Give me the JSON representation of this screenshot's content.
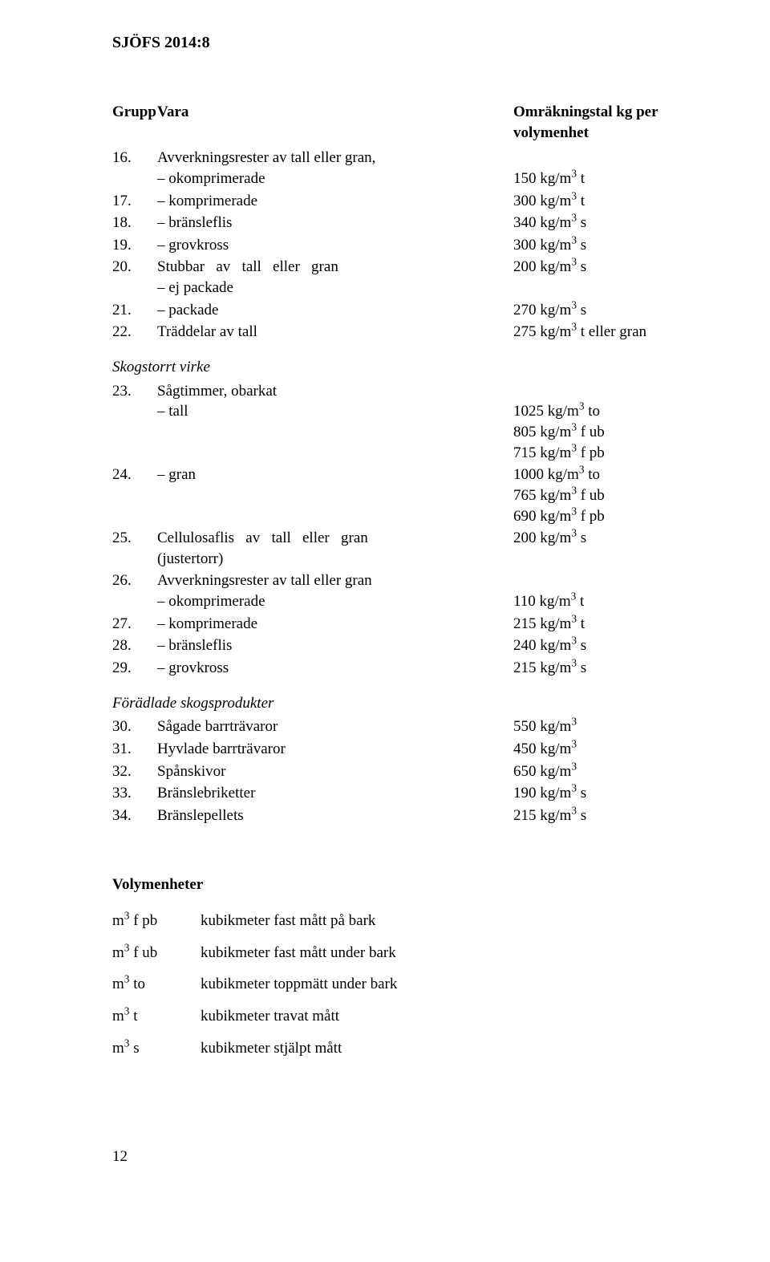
{
  "header": "SJÖFS 2014:8",
  "tableHeader": {
    "col1": "Grupp",
    "col2": "Vara",
    "col3": "Omräkningstal kg per volymenhet"
  },
  "rows": [
    {
      "num": "16.",
      "desc": "Avverkningsrester av tall eller gran, – okomprimerade",
      "val": "150 kg/m³ t",
      "descHtml": "Avverkningsrester av tall eller gran,<br>– okomprimerade",
      "valHtml": "<br>150 kg/m<sup>3</sup> t"
    },
    {
      "num": "17.",
      "desc": "– komprimerade",
      "val": "300 kg/m³ t",
      "valHtml": "300 kg/m<sup>3</sup> t"
    },
    {
      "num": "18.",
      "desc": "– bränsleflis",
      "val": "340 kg/m³ s",
      "valHtml": "340 kg/m<sup>3</sup> s"
    },
    {
      "num": "19.",
      "desc": "– grovkross",
      "val": "300 kg/m³ s",
      "valHtml": "300 kg/m<sup>3</sup> s"
    },
    {
      "num": "20.",
      "desc": "Stubbar av tall eller gran – ej packade",
      "val": "200 kg/m³ s",
      "descHtml": "Stubbar&nbsp;&nbsp;&nbsp;av&nbsp;&nbsp;&nbsp;tall&nbsp;&nbsp;&nbsp;eller&nbsp;&nbsp;&nbsp;gran<br>– ej packade",
      "valHtml": "200 kg/m<sup>3</sup> s"
    },
    {
      "num": "21.",
      "desc": "– packade",
      "val": "270 kg/m³ s",
      "valHtml": "270 kg/m<sup>3</sup> s"
    },
    {
      "num": "22.",
      "desc": "Träddelar av tall",
      "val": "275 kg/m³ t eller gran",
      "valHtml": "275 kg/m<sup>3</sup> t eller gran"
    }
  ],
  "section2": {
    "title": "Skogstorrt virke",
    "rows": [
      {
        "num": "23.",
        "desc": "Sågtimmer, obarkat<br>– tall",
        "val": "1025 kg/m³ to / 805 kg/m³ f ub / 715 kg/m³ f pb",
        "descHtml": "Sågtimmer, obarkat<br>– tall",
        "valHtml": "<br>1025 kg/m<sup>3</sup> to<br>805 kg/m<sup>3</sup> f ub<br>715 kg/m<sup>3</sup> f pb"
      },
      {
        "num": "24.",
        "desc": "– gran",
        "val": "1000 kg/m³ to / 765 kg/m³ f ub / 690 kg/m³ f pb",
        "valHtml": "1000 kg/m<sup>3</sup> to<br>765 kg/m<sup>3</sup> f ub<br>690 kg/m<sup>3</sup> f pb"
      },
      {
        "num": "25.",
        "desc": "Cellulosaflis av tall eller gran (justertorr)",
        "val": "200 kg/m³ s",
        "descHtml": "Cellulosaflis&nbsp;&nbsp;&nbsp;av&nbsp;&nbsp;&nbsp;tall&nbsp;&nbsp;&nbsp;eller&nbsp;&nbsp;&nbsp;gran<br>(justertorr)",
        "valHtml": "200 kg/m<sup>3</sup> s"
      },
      {
        "num": "26.",
        "desc": "Avverkningsrester av tall eller gran – okomprimerade",
        "val": "110 kg/m³ t",
        "descHtml": "Avverkningsrester av tall eller gran<br>– okomprimerade",
        "valHtml": "<br>110 kg/m<sup>3</sup> t"
      },
      {
        "num": "27.",
        "desc": "– komprimerade",
        "val": "215 kg/m³ t",
        "valHtml": "215 kg/m<sup>3</sup> t"
      },
      {
        "num": "28.",
        "desc": "– bränsleflis",
        "val": "240 kg/m³ s",
        "valHtml": "240 kg/m<sup>3</sup> s"
      },
      {
        "num": "29.",
        "desc": "– grovkross",
        "val": "215 kg/m³ s",
        "valHtml": "215 kg/m<sup>3</sup> s"
      }
    ]
  },
  "section3": {
    "title": "Förädlade skogsprodukter",
    "rows": [
      {
        "num": "30.",
        "desc": "Sågade barrträvaror",
        "val": "550 kg/m³",
        "valHtml": "550 kg/m<sup>3</sup>"
      },
      {
        "num": "31.",
        "desc": "Hyvlade barrträvaror",
        "val": "450 kg/m³",
        "valHtml": "450 kg/m<sup>3</sup>"
      },
      {
        "num": "32.",
        "desc": "Spånskivor",
        "val": "650 kg/m³",
        "valHtml": "650 kg/m<sup>3</sup>"
      },
      {
        "num": "33.",
        "desc": "Bränslebriketter",
        "val": "190 kg/m³ s",
        "valHtml": "190 kg/m<sup>3</sup> s"
      },
      {
        "num": "34.",
        "desc": "Bränslepellets",
        "val": "215 kg/m³ s",
        "valHtml": "215 kg/m<sup>3</sup> s"
      }
    ]
  },
  "volumeSection": {
    "title": "Volymenheter",
    "rows": [
      {
        "unit": "m³ f pb",
        "unitHtml": "m<sup>3</sup> f pb",
        "desc": "kubikmeter fast mått på bark"
      },
      {
        "unit": "m³ f ub",
        "unitHtml": "m<sup>3</sup> f ub",
        "desc": "kubikmeter fast mått under bark"
      },
      {
        "unit": "m³ to",
        "unitHtml": "m<sup>3</sup> to",
        "desc": "kubikmeter toppmätt under bark"
      },
      {
        "unit": "m³ t",
        "unitHtml": "m<sup>3</sup> t",
        "desc": "kubikmeter travat mått"
      },
      {
        "unit": "m³ s",
        "unitHtml": "m<sup>3</sup> s",
        "desc": "kubikmeter stjälpt mått"
      }
    ]
  },
  "pageNumber": "12"
}
